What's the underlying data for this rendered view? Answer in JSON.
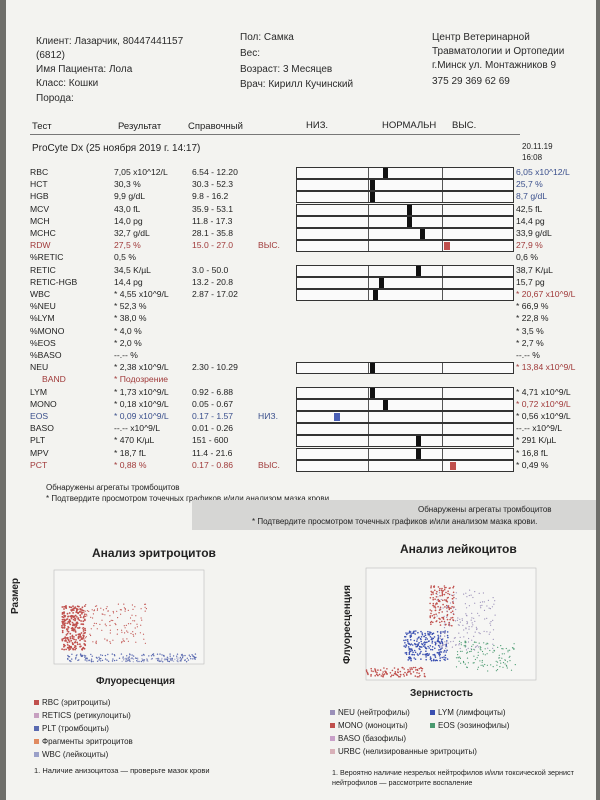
{
  "header": {
    "client": "Клиент: Лазарчик, 80447441157",
    "client_id": "(6812)",
    "patient": "Имя Пациента: Лола",
    "class": "Класс: Кошки",
    "breed": "Порода:",
    "sex": "Пол: Самка",
    "weight": "Вес:",
    "age": "Возраст: 3 Месяцев",
    "doctor": "Врач: Кирилл Кучинский",
    "clinic_1": "Центр Ветеринарной",
    "clinic_2": "Травматологии и Ортопедии",
    "clinic_3": "г.Минск ул. Монтажников 9",
    "clinic_phone": "375 29 369 62 69"
  },
  "columns": {
    "test": "Тест",
    "result": "Результат",
    "reference": "Справочный",
    "low": "НИЗ.",
    "normal": "НОРМАЛЬН",
    "high": "ВЫС."
  },
  "run": {
    "title": "ProCyte Dx (25 ноября 2019 г. 14:17)",
    "prev_date": "20.11.19",
    "prev_time": "16:08"
  },
  "rows": [
    {
      "name": "RBC",
      "result": "7,05 x10^12/L",
      "ref": "6.54 - 12.20",
      "flag": "",
      "prev": "6,05 x10^12/L",
      "prev_color": "blue",
      "bar": true,
      "marker": 0.4,
      "color": "normal",
      "gap": false
    },
    {
      "name": "HCT",
      "result": "30,3 %",
      "ref": "30.3 - 52.3",
      "flag": "",
      "prev": "25,7 %",
      "prev_color": "blue",
      "bar": true,
      "marker": 0.34,
      "color": "normal",
      "gap": false
    },
    {
      "name": "HGB",
      "result": "9,9 g/dL",
      "ref": "9.8 - 16.2",
      "flag": "",
      "prev": "8,7 g/dL",
      "prev_color": "blue",
      "bar": true,
      "marker": 0.34,
      "color": "normal",
      "gap": false
    },
    {
      "name": "MCV",
      "result": "43,0 fL",
      "ref": "35.9 - 53.1",
      "flag": "",
      "prev": "42,5 fL",
      "prev_color": "",
      "bar": true,
      "marker": 0.51,
      "color": "normal",
      "gap": false
    },
    {
      "name": "MCH",
      "result": "14,0 pg",
      "ref": "11.8 - 17.3",
      "flag": "",
      "prev": "14,4 pg",
      "prev_color": "",
      "bar": true,
      "marker": 0.51,
      "color": "normal",
      "gap": false
    },
    {
      "name": "MCHC",
      "result": "32,7 g/dL",
      "ref": "28.1 - 35.8",
      "flag": "",
      "prev": "33,9 g/dL",
      "prev_color": "",
      "bar": true,
      "marker": 0.57,
      "color": "normal",
      "gap": false
    },
    {
      "name": "RDW",
      "result": "27,5 %",
      "ref": "15.0 - 27.0",
      "flag": "ВЫС.",
      "prev": "27,9 %",
      "prev_color": "red",
      "bar": true,
      "marker": 0.68,
      "color": "high",
      "gap": false,
      "red": true
    },
    {
      "name": "%RETIC",
      "result": "0,5 %",
      "ref": "",
      "flag": "",
      "prev": "0,6 %",
      "prev_color": "",
      "bar": false,
      "gap": false
    },
    {
      "name": "RETIC",
      "result": "34,5 K/µL",
      "ref": "3.0 - 50.0",
      "flag": "",
      "prev": "38,7 K/µL",
      "prev_color": "",
      "bar": true,
      "marker": 0.55,
      "color": "normal",
      "gap": true
    },
    {
      "name": "RETIC-HGB",
      "result": "14,4 pg",
      "ref": "13.2 - 20.8",
      "flag": "",
      "prev": "15,7 pg",
      "prev_color": "",
      "bar": true,
      "marker": 0.38,
      "color": "normal",
      "gap": false
    },
    {
      "name": "WBC",
      "result": "* 4,55 x10^9/L",
      "ref": "2.87 - 17.02",
      "flag": "",
      "prev": "* 20,67 x10^9/L",
      "prev_color": "red",
      "bar": true,
      "marker": 0.35,
      "color": "normal",
      "gap": false
    },
    {
      "name": "%NEU",
      "result": "* 52,3 %",
      "ref": "",
      "flag": "",
      "prev": "* 66,9 %",
      "prev_color": "",
      "bar": false,
      "gap": false
    },
    {
      "name": "%LYM",
      "result": "* 38,0 %",
      "ref": "",
      "flag": "",
      "prev": "* 22,8 %",
      "prev_color": "",
      "bar": false,
      "gap": false
    },
    {
      "name": "%MONO",
      "result": "* 4,0 %",
      "ref": "",
      "flag": "",
      "prev": "* 3,5 %",
      "prev_color": "",
      "bar": false,
      "gap": false
    },
    {
      "name": "%EOS",
      "result": "* 2,0 %",
      "ref": "",
      "flag": "",
      "prev": "* 2,7 %",
      "prev_color": "",
      "bar": false,
      "gap": false
    },
    {
      "name": "%BASO",
      "result": "--.-- %",
      "ref": "",
      "flag": "",
      "prev": "--.-- %",
      "prev_color": "",
      "bar": false,
      "gap": false
    },
    {
      "name": "NEU",
      "result": "* 2,38 x10^9/L",
      "ref": "2.30 - 10.29",
      "flag": "",
      "prev": "* 13,84 x10^9/L",
      "prev_color": "red",
      "bar": true,
      "marker": 0.34,
      "color": "normal",
      "gap": false
    },
    {
      "name": "BAND",
      "result": "* Подозрение",
      "ref": "",
      "flag": "",
      "prev": "",
      "prev_color": "",
      "bar": false,
      "gap": false,
      "red": true,
      "indent": true
    },
    {
      "name": "LYM",
      "result": "* 1,73 x10^9/L",
      "ref": "0.92 - 6.88",
      "flag": "",
      "prev": "* 4,71 x10^9/L",
      "prev_color": "",
      "bar": true,
      "marker": 0.34,
      "color": "normal",
      "gap": true
    },
    {
      "name": "MONO",
      "result": "* 0,18 x10^9/L",
      "ref": "0.05 - 0.67",
      "flag": "",
      "prev": "* 0,72 x10^9/L",
      "prev_color": "red",
      "bar": true,
      "marker": 0.4,
      "color": "normal",
      "gap": false
    },
    {
      "name": "EOS",
      "result": "* 0,09 x10^9/L",
      "ref": "0.17 - 1.57",
      "flag": "НИЗ.",
      "prev": "* 0,56 x10^9/L",
      "prev_color": "",
      "bar": true,
      "marker": 0.17,
      "color": "low",
      "gap": false,
      "blue": true
    },
    {
      "name": "BASO",
      "result": "--.-- x10^9/L",
      "ref": "0.01 - 0.26",
      "flag": "",
      "prev": "--.-- x10^9/L",
      "prev_color": "",
      "bar": true,
      "marker": null,
      "color": "normal",
      "gap": false
    },
    {
      "name": "PLT",
      "result": "* 470 K/µL",
      "ref": "151 - 600",
      "flag": "",
      "prev": "* 291 K/µL",
      "prev_color": "",
      "bar": true,
      "marker": 0.55,
      "color": "normal",
      "gap": true
    },
    {
      "name": "MPV",
      "result": "* 18,7 fL",
      "ref": "11.4 - 21.6",
      "flag": "",
      "prev": "* 16,8 fL",
      "prev_color": "",
      "bar": true,
      "marker": 0.55,
      "color": "normal",
      "gap": false
    },
    {
      "name": "PCT",
      "result": "* 0,88 %",
      "ref": "0.17 - 0.86",
      "flag": "ВЫС.",
      "prev": "* 0,49 %",
      "prev_color": "",
      "bar": true,
      "marker": 0.71,
      "color": "high",
      "gap": false,
      "red": true
    }
  ],
  "notes": {
    "left_1": "Обнаружены агрегаты тромбоцитов",
    "left_2": "* Подтвердите просмотром точечных графиков и/или анализом мазка крови.",
    "right_1": "Обнаружены агрегаты тромбоцитов",
    "right_2": "* Подтвердите просмотром точечных графиков и/или анализом мазка крови."
  },
  "rbc_plot": {
    "title": "Анализ эритроцитов",
    "ylabel": "Размер",
    "xlabel": "Флуоресценция",
    "legend": [
      {
        "label": "RBC (эритроциты)",
        "color": "#c0504d"
      },
      {
        "label": "RETICS (ретикулоциты)",
        "color": "#c7a0c0"
      },
      {
        "label": "PLT (тромбоциты)",
        "color": "#5a6ab0"
      },
      {
        "label": "Фрагменты эритроцитов",
        "color": "#e08a60"
      },
      {
        "label": "WBC (лейкоциты)",
        "color": "#9aa0c8"
      }
    ],
    "footnote": "1. Наличие анизоцитоза — проверьте мазок крови"
  },
  "wbc_plot": {
    "title": "Анализ лейкоцитов",
    "ylabel": "Флуоресценция",
    "xlabel": "Зернистость",
    "legend": [
      {
        "label": "NEU (нейтрофилы)",
        "color": "#9a8fb8",
        "col": 0
      },
      {
        "label": "LYM (лимфоциты)",
        "color": "#3a4fb0",
        "col": 1
      },
      {
        "label": "MONO (моноциты)",
        "color": "#c0504d",
        "col": 0
      },
      {
        "label": "EOS (эозинофилы)",
        "color": "#4a9a70",
        "col": 1
      },
      {
        "label": "BASO (базофилы)",
        "color": "#c8a0c8",
        "col": 0
      },
      {
        "label": "URBC (нелизированные эритроциты)",
        "color": "#d8b0b8",
        "col": 0
      }
    ],
    "footnote_1": "1. Вероятно наличие незрелых нейтрофилов и/или токсической зернист",
    "footnote_2": "нейтрофилов — рассмотрите воспаление"
  }
}
